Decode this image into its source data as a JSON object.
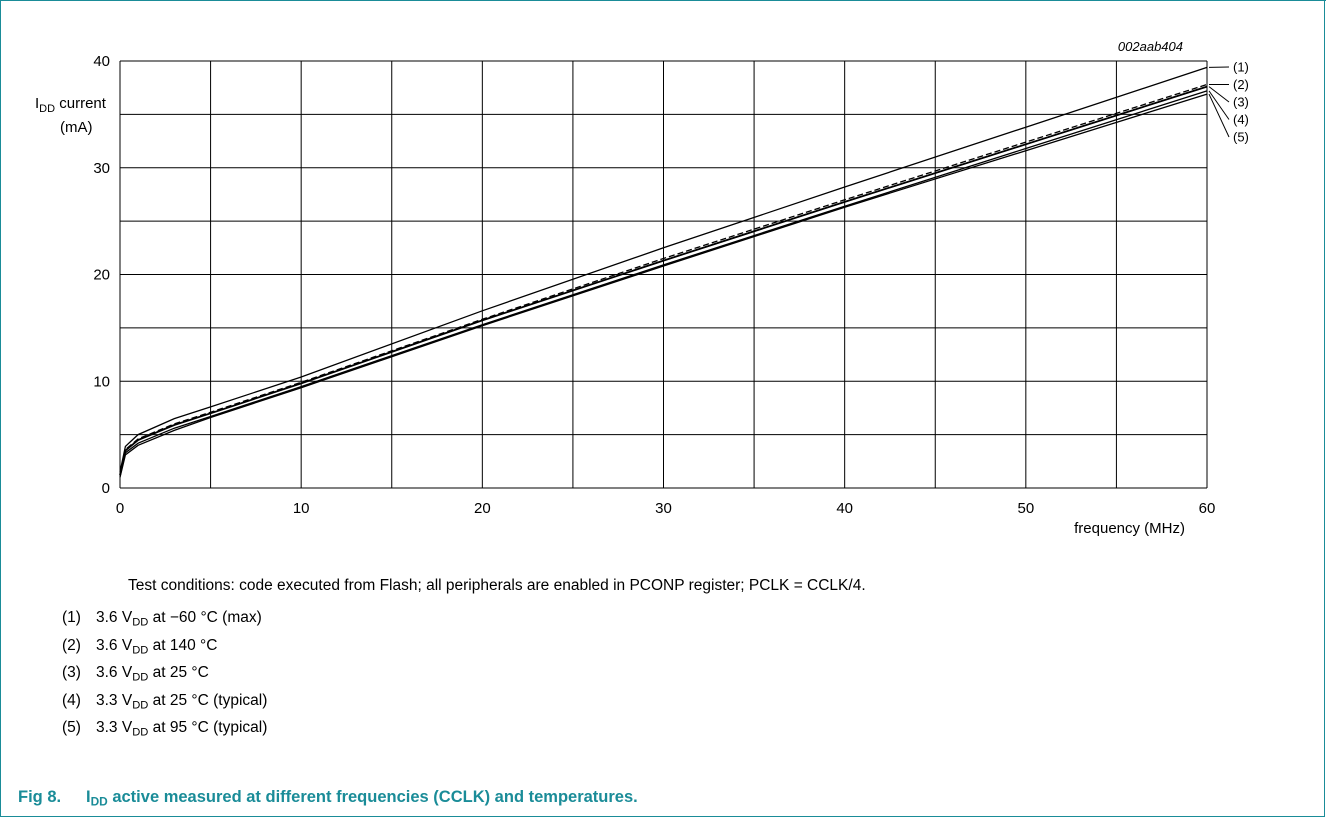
{
  "chart_data": {
    "type": "line",
    "code": "002aab404",
    "ylabel_main": "I",
    "ylabel_sub": "DD",
    "ylabel_rest": " current",
    "ylabel_unit": "(mA)",
    "xlabel": "frequency (MHz)",
    "xlim": [
      0,
      60
    ],
    "ylim": [
      0,
      40
    ],
    "xticks": [
      "0",
      "10",
      "20",
      "30",
      "40",
      "50",
      "60"
    ],
    "yticks": [
      "0",
      "10",
      "20",
      "30",
      "40"
    ],
    "grid": true,
    "series": [
      {
        "name": "(1)",
        "style": "solid",
        "x": [
          0,
          0.3,
          1,
          3,
          5,
          10,
          20,
          30,
          40,
          50,
          60
        ],
        "y": [
          1.5,
          3.9,
          5.0,
          6.5,
          7.6,
          10.4,
          16.6,
          22.5,
          28.2,
          33.8,
          39.4
        ]
      },
      {
        "name": "(2)",
        "style": "dashed",
        "x": [
          0,
          0.3,
          1,
          3,
          5,
          10,
          20,
          30,
          40,
          50,
          60
        ],
        "y": [
          1.3,
          3.6,
          4.6,
          6.0,
          7.1,
          9.9,
          15.8,
          21.5,
          27.0,
          32.4,
          37.8
        ]
      },
      {
        "name": "(3)",
        "style": "solid",
        "x": [
          0,
          0.3,
          1,
          3,
          5,
          10,
          20,
          30,
          40,
          50,
          60
        ],
        "y": [
          1.2,
          3.5,
          4.5,
          5.9,
          7.0,
          9.8,
          15.7,
          21.3,
          26.8,
          32.2,
          37.6
        ]
      },
      {
        "name": "(4)",
        "style": "solid",
        "x": [
          0,
          0.3,
          1,
          3,
          5,
          10,
          20,
          30,
          40,
          50,
          60
        ],
        "y": [
          1.1,
          3.3,
          4.2,
          5.6,
          6.7,
          9.5,
          15.3,
          20.9,
          26.4,
          31.8,
          37.2
        ]
      },
      {
        "name": "(5)",
        "style": "solid",
        "x": [
          0,
          0.3,
          1,
          3,
          5,
          10,
          20,
          30,
          40,
          50,
          60
        ],
        "y": [
          1.0,
          3.1,
          4.0,
          5.4,
          6.6,
          9.4,
          15.2,
          20.8,
          26.3,
          31.6,
          36.9
        ]
      }
    ]
  },
  "conditions": "Test conditions: code executed from Flash; all peripherals are enabled in PCONP register; PCLK = CCLK/4.",
  "legend": [
    {
      "num": "(1)",
      "value": "3.6",
      "v": "V",
      "sub": "DD",
      "rest": " at −60 °C (max)"
    },
    {
      "num": "(2)",
      "value": "3.6",
      "v": "V",
      "sub": "DD",
      "rest": " at 140 °C"
    },
    {
      "num": "(3)",
      "value": "3.6",
      "v": "V",
      "sub": "DD",
      "rest": " at 25 °C"
    },
    {
      "num": "(4)",
      "value": "3.3",
      "v": "V",
      "sub": "DD",
      "rest": " at 25 °C (typical)"
    },
    {
      "num": "(5)",
      "value": "3.3",
      "v": "V",
      "sub": "DD",
      "rest": " at 95 °C (typical)"
    }
  ],
  "caption": {
    "num": "Fig 8.",
    "main": "I",
    "sub": "DD",
    "rest": " active measured at different frequencies (CCLK) and temperatures."
  }
}
